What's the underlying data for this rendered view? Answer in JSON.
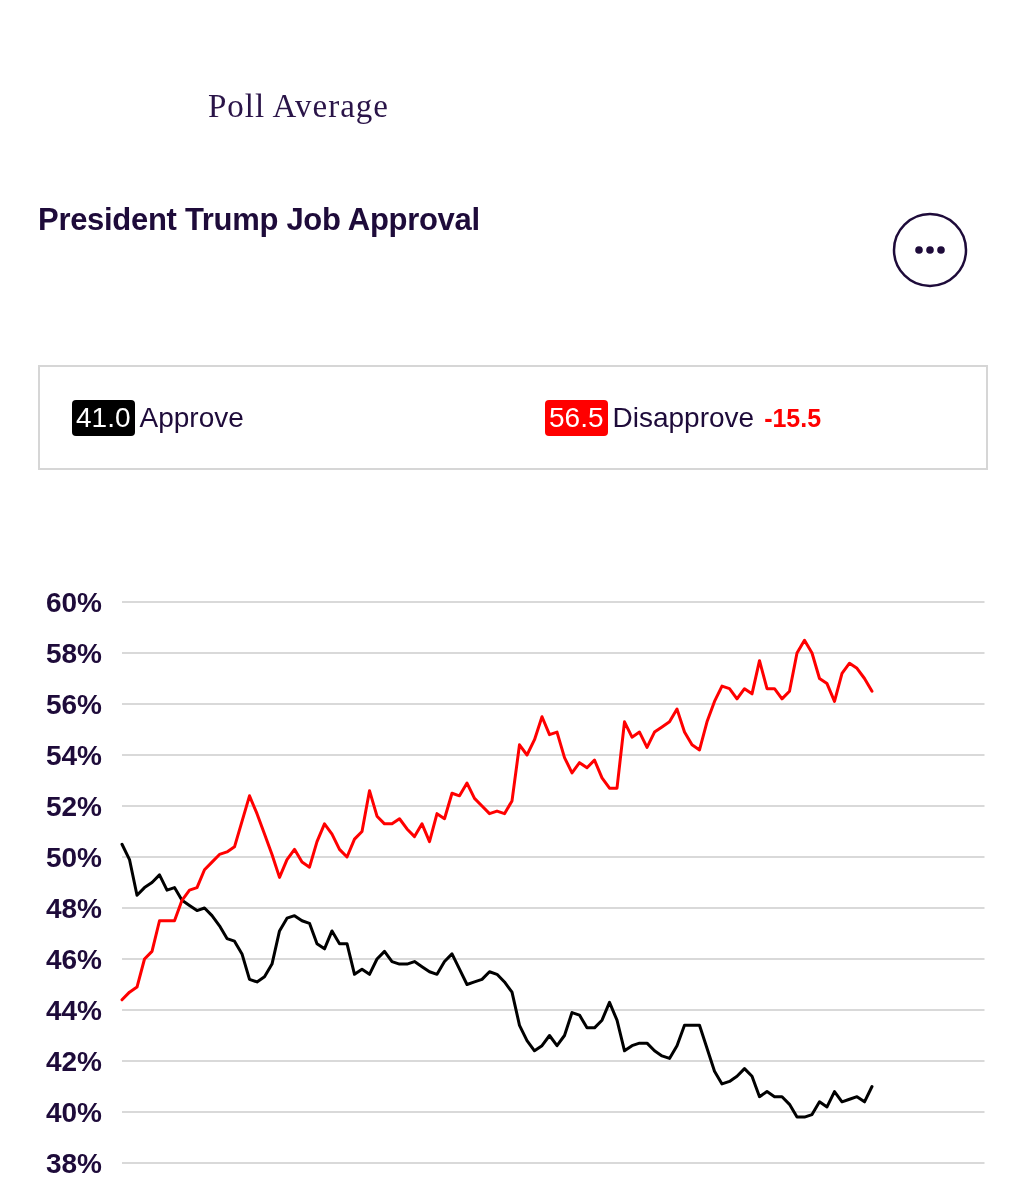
{
  "chart_data": {
    "type": "line",
    "title": "President Trump Job Approval",
    "subtitle": "Poll Average",
    "categories": [
      null,
      null,
      null,
      null,
      null,
      null,
      null,
      null,
      null,
      null,
      null,
      null,
      null,
      null,
      null,
      null,
      null,
      null,
      null,
      null,
      null,
      null,
      null,
      null,
      null,
      null,
      null,
      null,
      null,
      null,
      null,
      null,
      null,
      null,
      null,
      null,
      null,
      null,
      null,
      null,
      null,
      null,
      null,
      null,
      null,
      null,
      null,
      null,
      null,
      null,
      null,
      null,
      null,
      null,
      null,
      null,
      null,
      null,
      null,
      null,
      null,
      null,
      null,
      null,
      null,
      null,
      null,
      null,
      null,
      null,
      null,
      null,
      null,
      null,
      null,
      null,
      null,
      null,
      null,
      null,
      null,
      null,
      null,
      null,
      null,
      null,
      null,
      null,
      null,
      null,
      null,
      null,
      null,
      null,
      null,
      null,
      null,
      null,
      null,
      null,
      null,
      null,
      null,
      null,
      null,
      null,
      null,
      null,
      null,
      null,
      null,
      null,
      null,
      null,
      null,
      null
    ],
    "series": [
      {
        "name": "Approve",
        "color": "#000000",
        "values": [
          50.5,
          49.9,
          48.5,
          48.8,
          49.0,
          49.3,
          48.7,
          48.8,
          48.3,
          48.1,
          47.9,
          48.0,
          47.7,
          47.3,
          46.8,
          46.7,
          46.2,
          45.2,
          45.1,
          45.3,
          45.8,
          47.1,
          47.6,
          47.7,
          47.5,
          47.4,
          46.6,
          46.4,
          47.1,
          46.6,
          46.6,
          45.4,
          45.6,
          45.4,
          46.0,
          46.3,
          45.9,
          45.8,
          45.8,
          45.9,
          45.7,
          45.5,
          45.4,
          45.9,
          46.2,
          45.6,
          45.0,
          45.1,
          45.2,
          45.5,
          45.4,
          45.1,
          44.7,
          43.4,
          42.8,
          42.4,
          42.6,
          43.0,
          42.6,
          43.0,
          43.9,
          43.8,
          43.3,
          43.3,
          43.6,
          44.3,
          43.6,
          42.4,
          42.6,
          42.7,
          42.7,
          42.4,
          42.2,
          42.1,
          42.6,
          43.4,
          43.4,
          43.4,
          42.5,
          41.6,
          41.1,
          41.2,
          41.4,
          41.7,
          41.4,
          40.6,
          40.8,
          40.6,
          40.6,
          40.3,
          39.8,
          39.8,
          39.9,
          40.4,
          40.2,
          40.8,
          40.4,
          40.5,
          40.6,
          40.4,
          41.0,
          null,
          null,
          null,
          null,
          null,
          null,
          null,
          null,
          null,
          null,
          null,
          null,
          null,
          null,
          null
        ]
      },
      {
        "name": "Disapprove",
        "color": "#ff0000",
        "values": [
          44.4,
          44.7,
          44.9,
          46.0,
          46.3,
          47.5,
          47.5,
          47.5,
          48.3,
          48.7,
          48.8,
          49.5,
          49.8,
          50.1,
          50.2,
          50.4,
          51.4,
          52.4,
          51.7,
          50.9,
          50.1,
          49.2,
          49.9,
          50.3,
          49.8,
          49.6,
          50.6,
          51.3,
          50.9,
          50.3,
          50.0,
          50.7,
          51.0,
          52.6,
          51.6,
          51.3,
          51.3,
          51.5,
          51.1,
          50.8,
          51.3,
          50.6,
          51.7,
          51.5,
          52.5,
          52.4,
          52.9,
          52.3,
          52.0,
          51.7,
          51.8,
          51.7,
          52.2,
          54.4,
          54.0,
          54.6,
          55.5,
          54.8,
          54.9,
          53.9,
          53.3,
          53.7,
          53.5,
          53.8,
          53.1,
          52.7,
          52.7,
          55.3,
          54.7,
          54.9,
          54.3,
          54.9,
          55.1,
          55.3,
          55.8,
          54.9,
          54.4,
          54.2,
          55.3,
          56.1,
          56.7,
          56.6,
          56.2,
          56.6,
          56.4,
          57.7,
          56.6,
          56.6,
          56.2,
          56.5,
          58.0,
          58.5,
          58.0,
          57.0,
          56.8,
          56.1,
          57.2,
          57.6,
          57.4,
          57.0,
          56.5,
          null,
          null,
          null,
          null,
          null,
          null,
          null,
          null,
          null,
          null,
          null,
          null,
          null,
          null,
          null
        ]
      }
    ],
    "annotations": [
      "41.0",
      "56.5",
      "-15.5"
    ],
    "ylim": [
      38,
      60
    ],
    "yticks": [
      {
        "value": 38,
        "label": "38%"
      },
      {
        "value": 40,
        "label": "40%"
      },
      {
        "value": 42,
        "label": "42%"
      },
      {
        "value": 44,
        "label": "44%"
      },
      {
        "value": 46,
        "label": "46%"
      },
      {
        "value": 48,
        "label": "48%"
      },
      {
        "value": 50,
        "label": "50%"
      },
      {
        "value": 52,
        "label": "52%"
      },
      {
        "value": 54,
        "label": "54%"
      },
      {
        "value": 56,
        "label": "56%"
      },
      {
        "value": 58,
        "label": "58%"
      },
      {
        "value": 60,
        "label": "60%"
      }
    ],
    "grid": "y",
    "legend": "top",
    "tick_labels": "y",
    "line_style": "solid"
  }
}
